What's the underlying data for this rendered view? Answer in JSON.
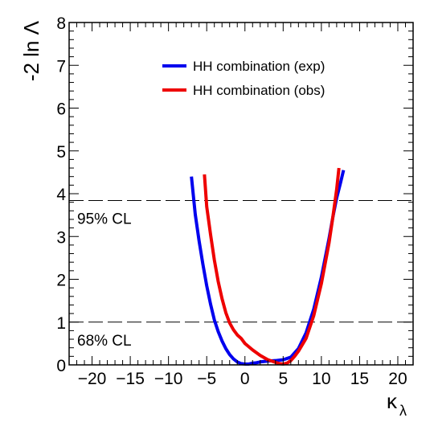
{
  "chart_data": {
    "type": "line",
    "xlabel": "κ",
    "xlabel_sub": "λ",
    "ylabel": "-2 ln Λ",
    "xlim": [
      -23,
      22
    ],
    "ylim": [
      0,
      8
    ],
    "x_ticks": [
      -20,
      -15,
      -10,
      -5,
      0,
      5,
      10,
      15,
      20
    ],
    "x_tick_labels": [
      "−20",
      "−15",
      "−10",
      "−5",
      "0",
      "5",
      "10",
      "15",
      "20"
    ],
    "y_ticks": [
      0,
      1,
      2,
      3,
      4,
      5,
      6,
      7,
      8
    ],
    "y_tick_labels": [
      "0",
      "1",
      "2",
      "3",
      "4",
      "5",
      "6",
      "7",
      "8"
    ],
    "legend_position": "top-right",
    "series": [
      {
        "name": "HH combination (exp)",
        "color": "#0000ee",
        "x": [
          -7.0,
          -6.5,
          -6.0,
          -5.5,
          -5.0,
          -4.5,
          -4.0,
          -3.5,
          -3.0,
          -2.5,
          -2.0,
          -1.5,
          -1.0,
          -0.5,
          0.0,
          0.5,
          1.0,
          1.5,
          2.0,
          3.0,
          4.0,
          5.0,
          6.0,
          7.0,
          8.0,
          9.0,
          10.0,
          11.0,
          11.5,
          12.0,
          12.5,
          12.9
        ],
        "y": [
          4.4,
          3.52,
          2.9,
          2.35,
          1.85,
          1.42,
          1.05,
          0.78,
          0.56,
          0.38,
          0.24,
          0.14,
          0.07,
          0.03,
          0.02,
          0.02,
          0.04,
          0.05,
          0.07,
          0.09,
          0.1,
          0.12,
          0.18,
          0.38,
          0.75,
          1.3,
          2.05,
          2.95,
          3.45,
          3.9,
          4.25,
          4.55
        ]
      },
      {
        "name": "HH combination (obs)",
        "color": "#ee0000",
        "x": [
          -5.3,
          -5.0,
          -4.5,
          -4.0,
          -3.5,
          -3.0,
          -2.5,
          -2.0,
          -1.5,
          -1.0,
          -0.5,
          0.0,
          1.0,
          2.0,
          3.0,
          4.0,
          4.5,
          5.0,
          5.5,
          6.0,
          6.5,
          7.0,
          8.0,
          9.0,
          10.0,
          11.0,
          11.5,
          12.0,
          12.3
        ],
        "y": [
          4.45,
          3.7,
          3.05,
          2.45,
          1.95,
          1.55,
          1.22,
          0.98,
          0.82,
          0.7,
          0.62,
          0.5,
          0.35,
          0.22,
          0.12,
          0.06,
          0.03,
          0.02,
          0.04,
          0.1,
          0.2,
          0.32,
          0.62,
          1.15,
          1.9,
          2.85,
          3.45,
          4.1,
          4.6
        ]
      }
    ],
    "reference_lines": [
      {
        "y": 3.84,
        "label": "95% CL"
      },
      {
        "y": 1.0,
        "label": "68% CL"
      }
    ]
  }
}
